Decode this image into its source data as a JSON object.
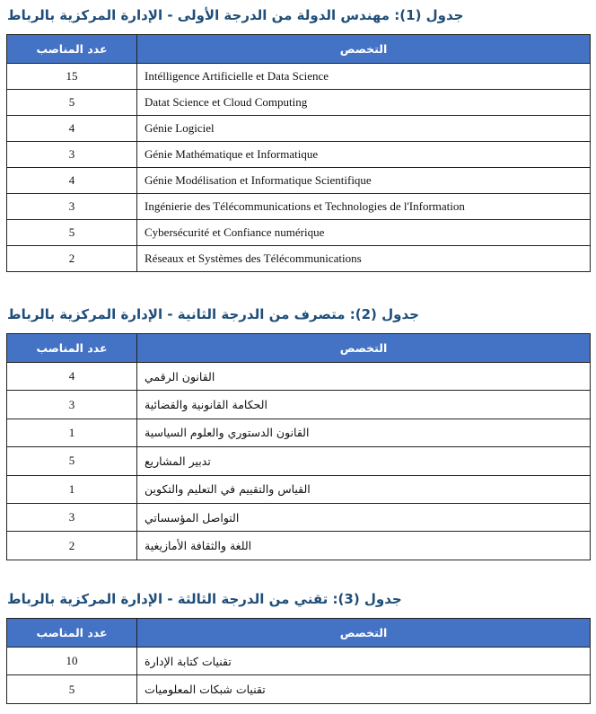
{
  "columns": {
    "count": "عدد المناصب",
    "specialty": "التخصص"
  },
  "tables": [
    {
      "title": "جدول (1): مهندس الدولة من الدرجة الأولى - الإدارة المركزية بالرباط",
      "rows": [
        {
          "count": "15",
          "specialty": "Intélligence Artificielle et Data Science"
        },
        {
          "count": "5",
          "specialty": "Datat Science et Cloud Computing"
        },
        {
          "count": "4",
          "specialty": "Génie Logiciel"
        },
        {
          "count": "3",
          "specialty": "Génie Mathématique et Informatique"
        },
        {
          "count": "4",
          "specialty": "Génie Modélisation et Informatique Scientifique"
        },
        {
          "count": "3",
          "specialty": "Ingénierie des Télécommunications et Technologies de l'Information"
        },
        {
          "count": "5",
          "specialty": "Cybersécurité et Confiance numérique"
        },
        {
          "count": "2",
          "specialty": "Réseaux et Systèmes des Télécommunications"
        }
      ]
    },
    {
      "title": "جدول (2): متصرف من الدرجة الثانية - الإدارة المركزية بالرباط",
      "rows": [
        {
          "count": "4",
          "specialty": "القانون الرقمي"
        },
        {
          "count": "3",
          "specialty": "الحكامة القانونية والقضائية"
        },
        {
          "count": "1",
          "specialty": "القانون الدستوري والعلوم السياسية"
        },
        {
          "count": "5",
          "specialty": "تدبير المشاريع"
        },
        {
          "count": "1",
          "specialty": "القياس والتقييم في التعليم والتكوين"
        },
        {
          "count": "3",
          "specialty": "التواصل المؤسساتي"
        },
        {
          "count": "2",
          "specialty": "اللغة والثقافة الأمازيغية"
        }
      ]
    },
    {
      "title": "جدول (3): تقني من الدرجة الثالثة - الإدارة المركزية بالرباط",
      "rows": [
        {
          "count": "10",
          "specialty": "تقنيات كتابة الإدارة"
        },
        {
          "count": "5",
          "specialty": "تقنيات شبكات المعلوميات"
        }
      ]
    }
  ],
  "colors": {
    "header_bg": "#4472c4",
    "title": "#1f4e79"
  }
}
